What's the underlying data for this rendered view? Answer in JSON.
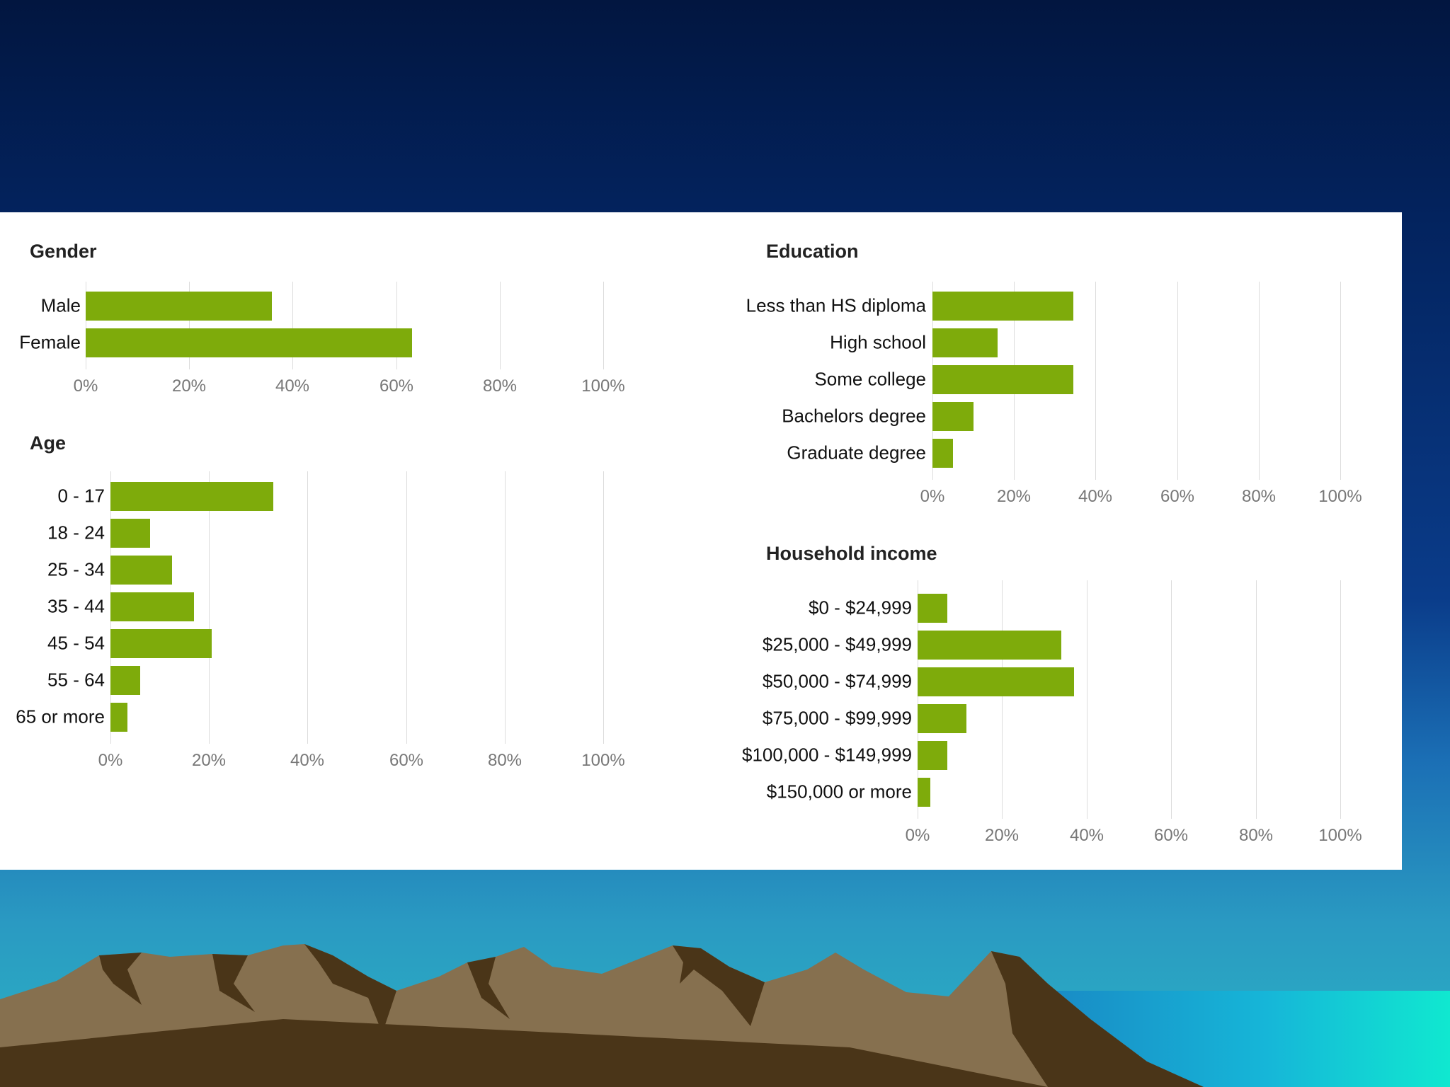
{
  "colors": {
    "bar": "#7eab0b",
    "gridline": "#dcdcdc",
    "mountain_light": "#86704f",
    "mountain_dark": "#4a3518"
  },
  "chart_data": [
    {
      "id": "gender",
      "type": "bar",
      "orientation": "horizontal",
      "title": "Gender",
      "categories": [
        "Male",
        "Female"
      ],
      "values": [
        36,
        63
      ],
      "xlim": [
        0,
        100
      ],
      "ticks": [
        "0%",
        "20%",
        "40%",
        "60%",
        "80%",
        "100%"
      ]
    },
    {
      "id": "age",
      "type": "bar",
      "orientation": "horizontal",
      "title": "Age",
      "categories": [
        "0 - 17",
        "18 - 24",
        "25 - 34",
        "35 - 44",
        "45 - 54",
        "55 - 64",
        "65 or more"
      ],
      "values": [
        33,
        8,
        12.5,
        17,
        20.5,
        6,
        3.5
      ],
      "xlim": [
        0,
        100
      ],
      "ticks": [
        "0%",
        "20%",
        "40%",
        "60%",
        "80%",
        "100%"
      ]
    },
    {
      "id": "education",
      "type": "bar",
      "orientation": "horizontal",
      "title": "Education",
      "categories": [
        "Less than HS diploma",
        "High school",
        "Some college",
        "Bachelors degree",
        "Graduate degree"
      ],
      "values": [
        34.5,
        16,
        34.5,
        10,
        5
      ],
      "xlim": [
        0,
        100
      ],
      "ticks": [
        "0%",
        "20%",
        "40%",
        "60%",
        "80%",
        "100%"
      ]
    },
    {
      "id": "income",
      "type": "bar",
      "orientation": "horizontal",
      "title": "Household income",
      "categories": [
        "$0 - $24,999",
        "$25,000 - $49,999",
        "$50,000 - $74,999",
        "$75,000 - $99,999",
        "$100,000 - $149,999",
        "$150,000 or more"
      ],
      "values": [
        7,
        34,
        37,
        11.5,
        7,
        3
      ],
      "xlim": [
        0,
        100
      ],
      "ticks": [
        "0%",
        "20%",
        "40%",
        "60%",
        "80%",
        "100%"
      ]
    }
  ]
}
